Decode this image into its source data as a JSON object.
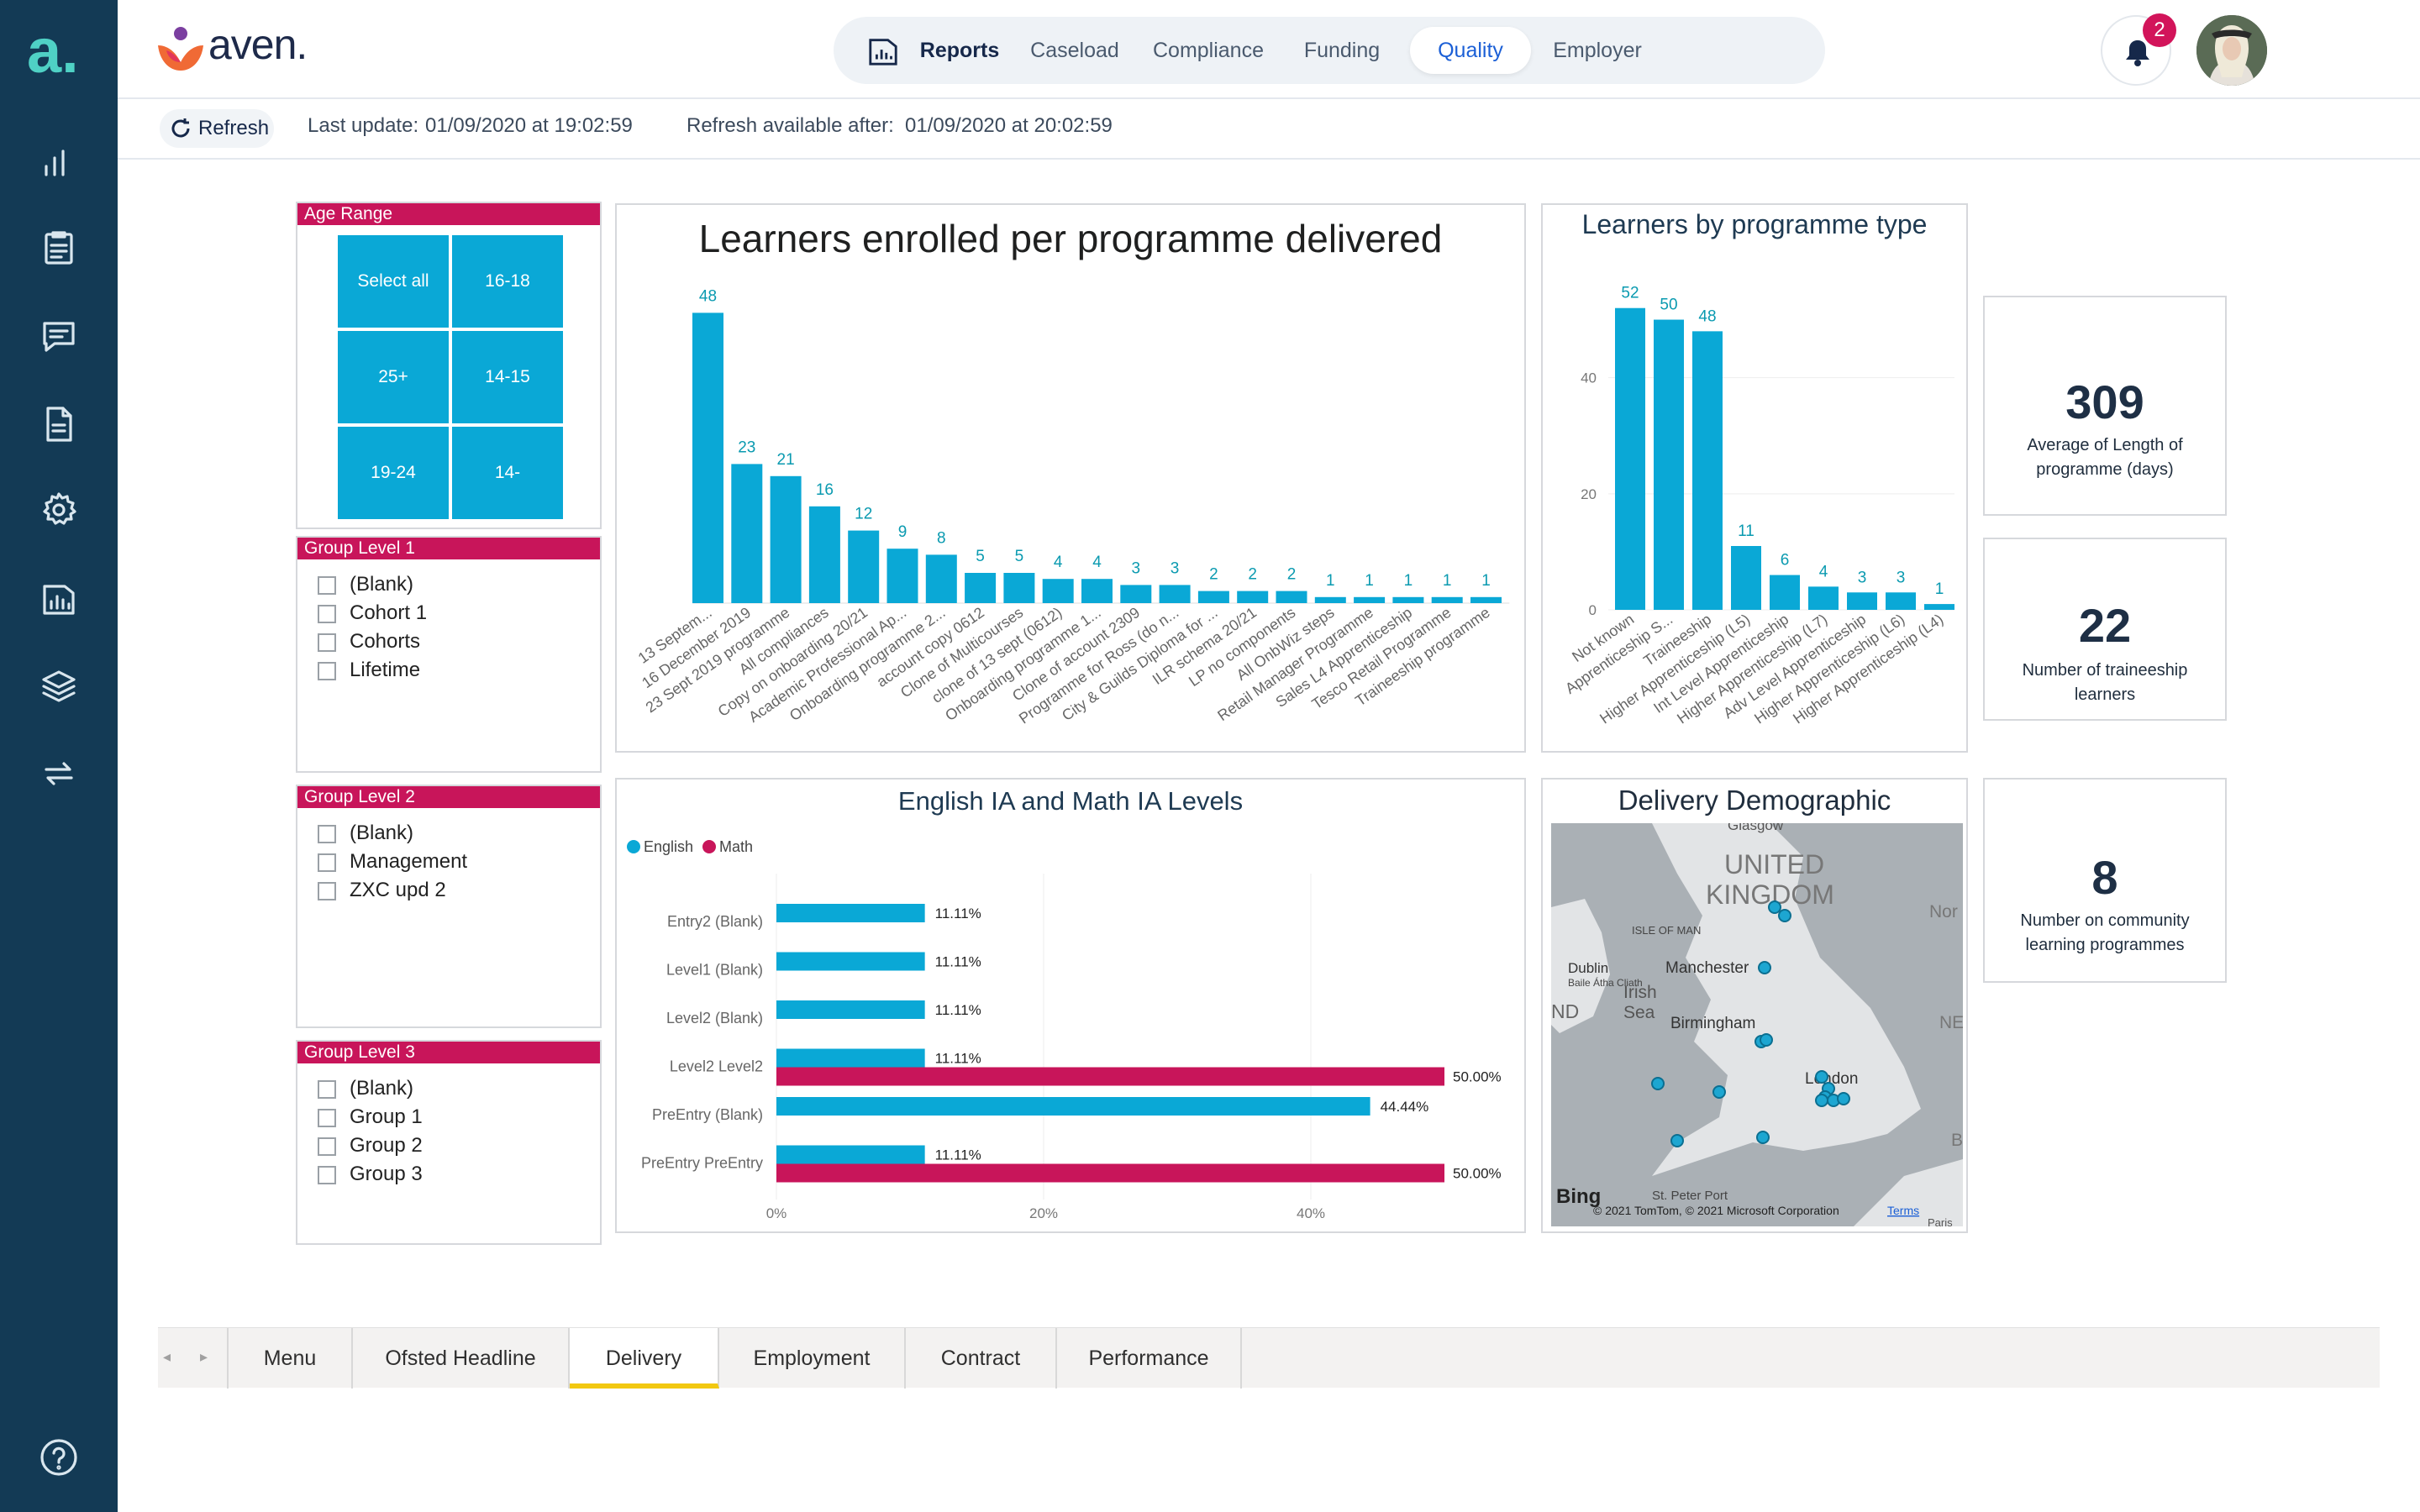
{
  "brand": {
    "name": "aven.",
    "sidebar_logo": "a."
  },
  "nav": {
    "reports_label": "Reports",
    "items": [
      {
        "label": "Caseload"
      },
      {
        "label": "Compliance"
      },
      {
        "label": "Funding"
      },
      {
        "label": "Quality"
      },
      {
        "label": "Employer"
      }
    ],
    "active": "Quality"
  },
  "notifications": {
    "count": "2"
  },
  "refresh": {
    "button_label": "Refresh",
    "last_update_label": "Last update:",
    "last_update_value": "01/09/2020 at 19:02:59",
    "available_label": "Refresh available after:",
    "available_value": "01/09/2020 at 20:02:59"
  },
  "slicers": {
    "age_range": {
      "title": "Age Range",
      "tiles": [
        "Select all",
        "16-18",
        "25+",
        "14-15",
        "19-24",
        "14-"
      ]
    },
    "group1": {
      "title": "Group Level 1",
      "options": [
        "(Blank)",
        "Cohort 1",
        "Cohorts",
        "Lifetime"
      ]
    },
    "group2": {
      "title": "Group Level 2",
      "options": [
        "(Blank)",
        "Management",
        "ZXC upd 2"
      ]
    },
    "group3": {
      "title": "Group Level 3",
      "options": [
        "(Blank)",
        "Group 1",
        "Group 2",
        "Group 3"
      ]
    }
  },
  "kpis": [
    {
      "value": "309",
      "label": "Average of Length of programme (days)"
    },
    {
      "value": "22",
      "label": "Number of traineeship learners"
    },
    {
      "value": "8",
      "label": "Number on community learning programmes"
    }
  ],
  "map": {
    "title": "Delivery Demographic",
    "labels": [
      "Glasgow",
      "UNITED",
      "KINGDOM",
      "ISLE OF MAN",
      "Manchester",
      "Dublin",
      "Baile Átha Cliath",
      "Irish",
      "Sea",
      "Birmingham",
      "London",
      "St. Peter Port",
      "Nor",
      "NE",
      "ND",
      "B",
      "Paris"
    ],
    "credit": "© 2021 TomTom, © 2021 Microsoft Corporation",
    "terms": "Terms",
    "bing": "Bing"
  },
  "colors": {
    "sidebar": "#133a55",
    "bar": "#0aa8d6",
    "math": "#c8155a",
    "accent": "#1b5fd6"
  },
  "tabs": {
    "items": [
      "Menu",
      "Ofsted Headline",
      "Delivery",
      "Employment",
      "Contract",
      "Performance"
    ],
    "active": "Delivery"
  },
  "chart_data": [
    {
      "type": "bar",
      "title": "Learners enrolled per programme delivered",
      "categories": [
        "13 Septem...",
        "16 December 2019",
        "23 Sept 2019 programme",
        "All compliances",
        "Copy on onboarding 20/21",
        "Academic Professional Ap...",
        "Onboarding programme 2...",
        "account copy 0612",
        "Clone of Multicourses",
        "clone of 13 sept (0612)",
        "Onboarding programme 1...",
        "Clone of account 2309",
        "Programme for Ross (do n...",
        "City & Guilds Diploma for ...",
        "ILR schema 20/21",
        "LP no components",
        "All OnbWiz steps",
        "Retail Manager Programme",
        "Sales L4 Apprenticeship",
        "Tesco Retail Programme",
        "Traineeship programme"
      ],
      "values": [
        48,
        23,
        21,
        16,
        12,
        9,
        8,
        5,
        5,
        4,
        4,
        3,
        3,
        2,
        2,
        2,
        1,
        1,
        1,
        1,
        1
      ],
      "ylim": [
        0,
        50
      ]
    },
    {
      "type": "bar",
      "title": "Learners by programme type",
      "categories": [
        "Not known",
        "Apprenticeship S...",
        "Traineeship",
        "Higher Apprenticeship (L5)",
        "Int Level Apprenticeship",
        "Higher Apprenticeship (L7)",
        "Adv Level Apprenticeship",
        "Higher Apprenticeship (L6)",
        "Higher Apprenticeship (L4)"
      ],
      "values": [
        52,
        50,
        48,
        11,
        6,
        4,
        3,
        3,
        1
      ],
      "yticks": [
        "0",
        "20",
        "40"
      ],
      "ylim": [
        0,
        55
      ]
    },
    {
      "type": "bar",
      "orientation": "horizontal",
      "title": "English IA and Math IA Levels",
      "categories": [
        "Entry2 (Blank)",
        "Level1 (Blank)",
        "Level2 (Blank)",
        "Level2 Level2",
        "PreEntry (Blank)",
        "PreEntry PreEntry"
      ],
      "series": [
        {
          "name": "English",
          "values": [
            11.11,
            11.11,
            11.11,
            11.11,
            44.44,
            11.11
          ],
          "labels": [
            "11.11%",
            "11.11%",
            "11.11%",
            "11.11%",
            "44.44%",
            "11.11%"
          ]
        },
        {
          "name": "Math",
          "values": [
            null,
            null,
            null,
            50.0,
            null,
            50.0
          ],
          "labels": [
            "",
            "",
            "",
            "50.00%",
            "",
            "50.00%"
          ]
        }
      ],
      "xticks": [
        "0%",
        "20%",
        "40%"
      ],
      "xlim": [
        0,
        50
      ]
    }
  ]
}
